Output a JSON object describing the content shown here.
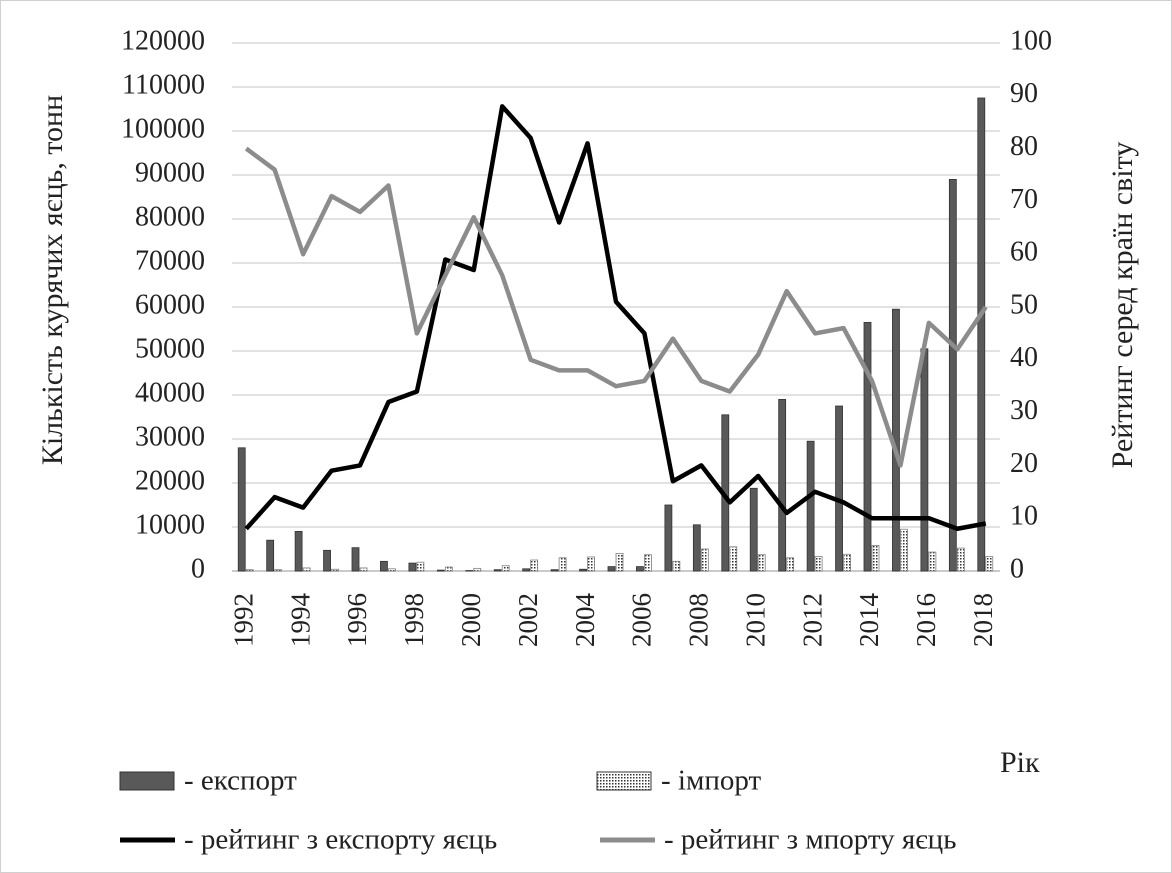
{
  "chart_data": {
    "type": "bar_line",
    "ylabel": "Кількість курячих яєць, тонн",
    "y2label": "Рейтинг серед країн світу",
    "xlabel": "Рік",
    "categories": [
      "1992",
      null,
      "1994",
      null,
      "1996",
      null,
      "1998",
      null,
      "2000",
      null,
      "2002",
      null,
      "2004",
      null,
      "2006",
      null,
      "2008",
      null,
      "2010",
      null,
      "2012",
      null,
      "2014",
      null,
      "2016",
      null,
      "2018"
    ],
    "series": [
      {
        "name": "- експорт",
        "type": "bar",
        "color": "#595959",
        "values": [
          28000,
          7000,
          9000,
          4700,
          5300,
          2200,
          1800,
          200,
          100,
          300,
          500,
          300,
          400,
          1000,
          1000,
          15000,
          10500,
          35500,
          18800,
          39000,
          29500,
          37500,
          56500,
          59500,
          50500,
          89000,
          107500
        ]
      },
      {
        "name": "- імпорт",
        "type": "bar",
        "color": "#808080",
        "pattern": "dotted",
        "values": [
          300,
          300,
          700,
          400,
          700,
          500,
          2000,
          900,
          600,
          1200,
          2500,
          3000,
          3200,
          4000,
          3700,
          2200,
          5000,
          5500,
          3700,
          3000,
          3300,
          3800,
          5800,
          9500,
          4300,
          5200,
          3300
        ]
      },
      {
        "name": "- рейтинг з експорту яєць",
        "type": "line",
        "axis": "y2",
        "color": "#000000",
        "values": [
          8,
          14,
          12,
          19,
          20,
          32,
          34,
          59,
          57,
          88,
          82,
          66,
          81,
          51,
          45,
          17,
          20,
          13,
          18,
          11,
          15,
          13,
          10,
          10,
          10,
          8,
          9
        ]
      },
      {
        "name": "- рейтинг з мпорту яєць",
        "type": "line",
        "axis": "y2",
        "color": "#8c8c8c",
        "values": [
          80,
          76,
          60,
          71,
          68,
          73,
          45,
          56,
          67,
          56,
          40,
          38,
          38,
          35,
          36,
          44,
          36,
          34,
          41,
          53,
          45,
          46,
          36,
          20,
          47,
          42,
          50
        ]
      }
    ],
    "ylim": [
      0,
      120000
    ],
    "yticks": [
      0,
      10000,
      20000,
      30000,
      40000,
      50000,
      60000,
      70000,
      80000,
      90000,
      100000,
      110000,
      120000
    ],
    "y2lim": [
      0,
      100
    ],
    "y2ticks": [
      0,
      10,
      20,
      30,
      40,
      50,
      60,
      70,
      80,
      90,
      100
    ],
    "grid": true
  }
}
